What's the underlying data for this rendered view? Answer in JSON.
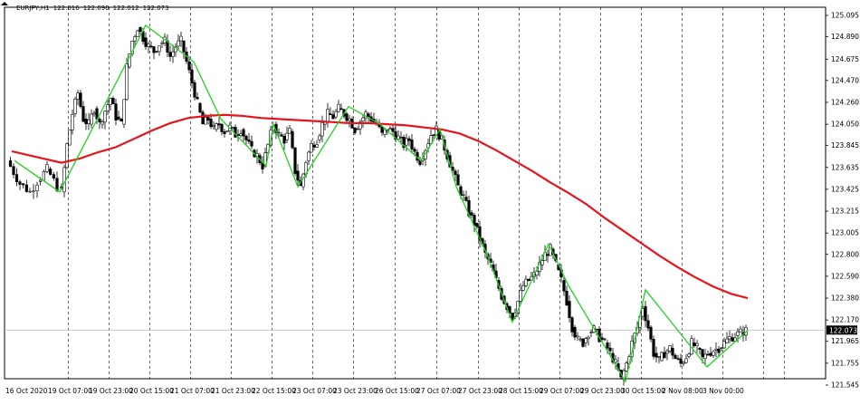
{
  "header": {
    "symbol": "EURJPY,H1",
    "open": "122.016",
    "high": "122.090",
    "low": "122.012",
    "close": "122.073"
  },
  "current_price_label": "122.073",
  "colors": {
    "background": "#ffffff",
    "bull_candle": "#ffffff",
    "bear_candle": "#000000",
    "candle_outline": "#000000",
    "moving_average": "#e8141c",
    "zigzag": "#1fd31f",
    "grid": "#000000",
    "bid_line": "#c0c0c0",
    "price_tag": "#000000",
    "price_tag_text": "#ffffff"
  },
  "chart_data": {
    "type": "candlestick",
    "title": "EURJPY,H1",
    "xlabel": "",
    "ylabel": "",
    "ylim": [
      121.5,
      125.1
    ],
    "grid": "vertical dashed",
    "y_ticks": [
      "125.095",
      "124.890",
      "124.675",
      "124.470",
      "124.260",
      "124.050",
      "123.845",
      "123.635",
      "123.425",
      "123.215",
      "123.005",
      "122.800",
      "122.590",
      "122.380",
      "122.170",
      "121.965",
      "121.755",
      "121.545"
    ],
    "x_ticks": [
      "16 Oct 2020",
      "19 Oct 07:00",
      "19 Oct 23:00",
      "20 Oct 15:00",
      "21 Oct 07:00",
      "21 Oct 23:00",
      "22 Oct 15:00",
      "23 Oct 07:00",
      "23 Oct 23:00",
      "26 Oct 15:00",
      "27 Oct 07:00",
      "27 Oct 23:00",
      "28 Oct 15:00",
      "29 Oct 07:00",
      "29 Oct 23:00",
      "30 Oct 15:00",
      "2 Nov 08:00",
      "3 Nov 00:00"
    ],
    "series_path": [
      [
        0,
        123.7
      ],
      [
        14,
        123.48
      ],
      [
        25,
        123.4
      ],
      [
        33,
        123.5
      ],
      [
        44,
        123.62
      ],
      [
        55,
        123.45
      ],
      [
        60,
        123.4
      ],
      [
        66,
        123.85
      ],
      [
        72,
        124.15
      ],
      [
        78,
        124.35
      ],
      [
        84,
        124.1
      ],
      [
        90,
        124.05
      ],
      [
        96,
        124.2
      ],
      [
        102,
        124.05
      ],
      [
        108,
        124.18
      ],
      [
        114,
        124.3
      ],
      [
        120,
        124.12
      ],
      [
        126,
        124.05
      ],
      [
        132,
        124.6
      ],
      [
        138,
        124.85
      ],
      [
        144,
        124.98
      ],
      [
        150,
        124.88
      ],
      [
        156,
        124.8
      ],
      [
        162,
        124.75
      ],
      [
        168,
        124.82
      ],
      [
        174,
        124.85
      ],
      [
        180,
        124.7
      ],
      [
        186,
        124.8
      ],
      [
        192,
        124.85
      ],
      [
        198,
        124.65
      ],
      [
        204,
        124.45
      ],
      [
        210,
        124.25
      ],
      [
        216,
        124.05
      ],
      [
        222,
        124.1
      ],
      [
        228,
        124.0
      ],
      [
        234,
        124.05
      ],
      [
        240,
        123.98
      ],
      [
        246,
        124.02
      ],
      [
        252,
        123.95
      ],
      [
        258,
        124.0
      ],
      [
        264,
        123.9
      ],
      [
        270,
        123.8
      ],
      [
        276,
        123.75
      ],
      [
        282,
        123.65
      ],
      [
        288,
        123.85
      ],
      [
        294,
        124.05
      ],
      [
        300,
        123.95
      ],
      [
        306,
        123.9
      ],
      [
        312,
        123.98
      ],
      [
        318,
        123.6
      ],
      [
        324,
        123.45
      ],
      [
        330,
        123.7
      ],
      [
        336,
        123.85
      ],
      [
        342,
        123.9
      ],
      [
        348,
        124.05
      ],
      [
        354,
        124.15
      ],
      [
        360,
        124.12
      ],
      [
        366,
        124.2
      ],
      [
        372,
        124.15
      ],
      [
        378,
        124.1
      ],
      [
        384,
        124.0
      ],
      [
        390,
        124.08
      ],
      [
        396,
        124.15
      ],
      [
        402,
        124.1
      ],
      [
        408,
        124.05
      ],
      [
        414,
        123.95
      ],
      [
        420,
        124.0
      ],
      [
        426,
        123.98
      ],
      [
        432,
        123.92
      ],
      [
        438,
        123.85
      ],
      [
        444,
        123.9
      ],
      [
        450,
        123.78
      ],
      [
        456,
        123.7
      ],
      [
        462,
        123.82
      ],
      [
        468,
        123.95
      ],
      [
        474,
        124.0
      ],
      [
        480,
        123.9
      ],
      [
        486,
        123.75
      ],
      [
        492,
        123.6
      ],
      [
        498,
        123.45
      ],
      [
        504,
        123.35
      ],
      [
        510,
        123.2
      ],
      [
        516,
        123.1
      ],
      [
        522,
        122.95
      ],
      [
        528,
        122.8
      ],
      [
        534,
        122.7
      ],
      [
        540,
        122.55
      ],
      [
        546,
        122.4
      ],
      [
        552,
        122.3
      ],
      [
        558,
        122.2
      ],
      [
        564,
        122.35
      ],
      [
        570,
        122.5
      ],
      [
        576,
        122.55
      ],
      [
        582,
        122.6
      ],
      [
        588,
        122.7
      ],
      [
        594,
        122.8
      ],
      [
        600,
        122.85
      ],
      [
        606,
        122.7
      ],
      [
        612,
        122.55
      ],
      [
        618,
        122.35
      ],
      [
        624,
        122.1
      ],
      [
        630,
        121.98
      ],
      [
        636,
        121.95
      ],
      [
        642,
        122.05
      ],
      [
        648,
        122.08
      ],
      [
        654,
        122.0
      ],
      [
        660,
        121.95
      ],
      [
        666,
        121.85
      ],
      [
        672,
        121.75
      ],
      [
        678,
        121.6
      ],
      [
        684,
        121.75
      ],
      [
        690,
        121.95
      ],
      [
        696,
        122.1
      ],
      [
        702,
        122.3
      ],
      [
        708,
        122.1
      ],
      [
        714,
        121.85
      ],
      [
        720,
        121.78
      ],
      [
        726,
        121.85
      ],
      [
        732,
        121.9
      ],
      [
        738,
        121.8
      ],
      [
        744,
        121.75
      ],
      [
        750,
        121.82
      ],
      [
        756,
        121.95
      ],
      [
        762,
        121.9
      ],
      [
        768,
        121.8
      ],
      [
        774,
        121.85
      ],
      [
        780,
        121.88
      ],
      [
        786,
        121.9
      ],
      [
        792,
        121.95
      ],
      [
        798,
        122.0
      ],
      [
        804,
        122.02
      ],
      [
        810,
        122.05
      ],
      [
        816,
        122.07
      ]
    ],
    "moving_average": [
      [
        5,
        123.79
      ],
      [
        20,
        123.76
      ],
      [
        40,
        123.72
      ],
      [
        60,
        123.68
      ],
      [
        80,
        123.72
      ],
      [
        100,
        123.78
      ],
      [
        120,
        123.83
      ],
      [
        140,
        123.91
      ],
      [
        160,
        123.99
      ],
      [
        180,
        124.06
      ],
      [
        200,
        124.11
      ],
      [
        220,
        124.13
      ],
      [
        240,
        124.14
      ],
      [
        260,
        124.13
      ],
      [
        280,
        124.11
      ],
      [
        300,
        124.1
      ],
      [
        320,
        124.09
      ],
      [
        340,
        124.08
      ],
      [
        360,
        124.07
      ],
      [
        380,
        124.06
      ],
      [
        400,
        124.06
      ],
      [
        420,
        124.05
      ],
      [
        440,
        124.04
      ],
      [
        460,
        124.02
      ],
      [
        480,
        124.0
      ],
      [
        500,
        123.96
      ],
      [
        520,
        123.89
      ],
      [
        540,
        123.8
      ],
      [
        560,
        123.7
      ],
      [
        580,
        123.6
      ],
      [
        600,
        123.49
      ],
      [
        620,
        123.39
      ],
      [
        640,
        123.28
      ],
      [
        660,
        123.15
      ],
      [
        680,
        123.03
      ],
      [
        700,
        122.91
      ],
      [
        720,
        122.79
      ],
      [
        740,
        122.68
      ],
      [
        760,
        122.58
      ],
      [
        780,
        122.49
      ],
      [
        800,
        122.42
      ],
      [
        818,
        122.38
      ]
    ],
    "zigzag": [
      [
        8,
        123.7
      ],
      [
        58,
        123.4
      ],
      [
        153,
        125.0
      ],
      [
        206,
        124.65
      ],
      [
        236,
        124.1
      ],
      [
        286,
        123.65
      ],
      [
        294,
        124.05
      ],
      [
        321,
        123.45
      ],
      [
        377,
        124.22
      ],
      [
        412,
        124.05
      ],
      [
        457,
        123.7
      ],
      [
        478,
        124.0
      ],
      [
        496,
        123.45
      ],
      [
        530,
        122.8
      ],
      [
        558,
        122.15
      ],
      [
        598,
        122.9
      ],
      [
        620,
        122.5
      ],
      [
        683,
        121.58
      ],
      [
        705,
        122.46
      ],
      [
        773,
        121.72
      ],
      [
        818,
        122.07
      ]
    ]
  }
}
